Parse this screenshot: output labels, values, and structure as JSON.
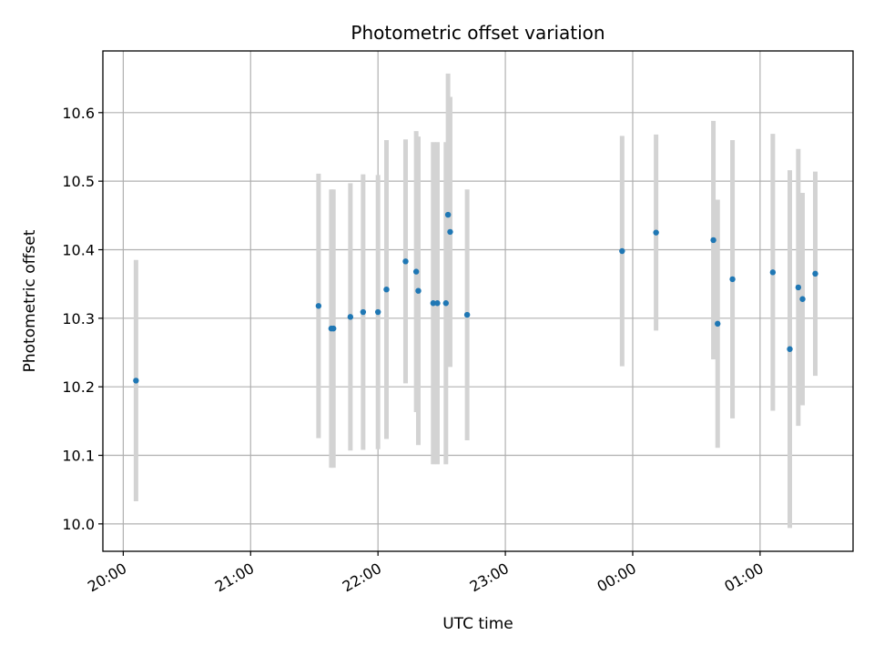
{
  "chart_data": {
    "type": "scatter",
    "title": "Photometric offset variation",
    "xlabel": "UTC time",
    "ylabel": "Photometric offset",
    "x_axis": {
      "range_hours": [
        19.84,
        25.73
      ],
      "ticks": [
        {
          "value": 20,
          "label": "20:00"
        },
        {
          "value": 21,
          "label": "21:00"
        },
        {
          "value": 22,
          "label": "22:00"
        },
        {
          "value": 23,
          "label": "23:00"
        },
        {
          "value": 24,
          "label": "00:00"
        },
        {
          "value": 25,
          "label": "01:00"
        }
      ]
    },
    "y_axis": {
      "range": [
        9.96,
        10.69
      ],
      "ticks": [
        {
          "value": 10.0,
          "label": "10.0"
        },
        {
          "value": 10.1,
          "label": "10.1"
        },
        {
          "value": 10.2,
          "label": "10.2"
        },
        {
          "value": 10.3,
          "label": "10.3"
        },
        {
          "value": 10.4,
          "label": "10.4"
        },
        {
          "value": 10.5,
          "label": "10.5"
        },
        {
          "value": 10.6,
          "label": "10.6"
        }
      ]
    },
    "grid": true,
    "colors": {
      "points": "#1f77b4",
      "errorbars": "#d3d3d3",
      "grid": "#b0b0b0"
    },
    "points": [
      {
        "time": "20:06",
        "y": 10.209,
        "err": 0.176
      },
      {
        "time": "21:32",
        "y": 10.318,
        "err": 0.193
      },
      {
        "time": "21:38",
        "y": 10.285,
        "err": 0.203
      },
      {
        "time": "21:39",
        "y": 10.285,
        "err": 0.203
      },
      {
        "time": "21:47",
        "y": 10.302,
        "err": 0.195
      },
      {
        "time": "21:53",
        "y": 10.309,
        "err": 0.201
      },
      {
        "time": "22:00",
        "y": 10.309,
        "err": 0.2
      },
      {
        "time": "22:04",
        "y": 10.342,
        "err": 0.218
      },
      {
        "time": "22:13",
        "y": 10.383,
        "err": 0.178
      },
      {
        "time": "22:18",
        "y": 10.368,
        "err": 0.205
      },
      {
        "time": "22:19",
        "y": 10.34,
        "err": 0.225
      },
      {
        "time": "22:26",
        "y": 10.322,
        "err": 0.235
      },
      {
        "time": "22:28",
        "y": 10.322,
        "err": 0.235
      },
      {
        "time": "22:32",
        "y": 10.322,
        "err": 0.235
      },
      {
        "time": "22:33",
        "y": 10.451,
        "err": 0.206
      },
      {
        "time": "22:34",
        "y": 10.426,
        "err": 0.197
      },
      {
        "time": "22:42",
        "y": 10.305,
        "err": 0.183
      },
      {
        "time": "23:55",
        "y": 10.398,
        "err": 0.168
      },
      {
        "time": "00:11",
        "y": 10.425,
        "err": 0.143
      },
      {
        "time": "00:38",
        "y": 10.414,
        "err": 0.174
      },
      {
        "time": "00:40",
        "y": 10.292,
        "err": 0.181
      },
      {
        "time": "00:47",
        "y": 10.357,
        "err": 0.203
      },
      {
        "time": "01:06",
        "y": 10.367,
        "err": 0.202
      },
      {
        "time": "01:14",
        "y": 10.255,
        "err": 0.261
      },
      {
        "time": "01:18",
        "y": 10.345,
        "err": 0.202
      },
      {
        "time": "01:20",
        "y": 10.328,
        "err": 0.155
      },
      {
        "time": "01:26",
        "y": 10.365,
        "err": 0.149
      }
    ]
  }
}
